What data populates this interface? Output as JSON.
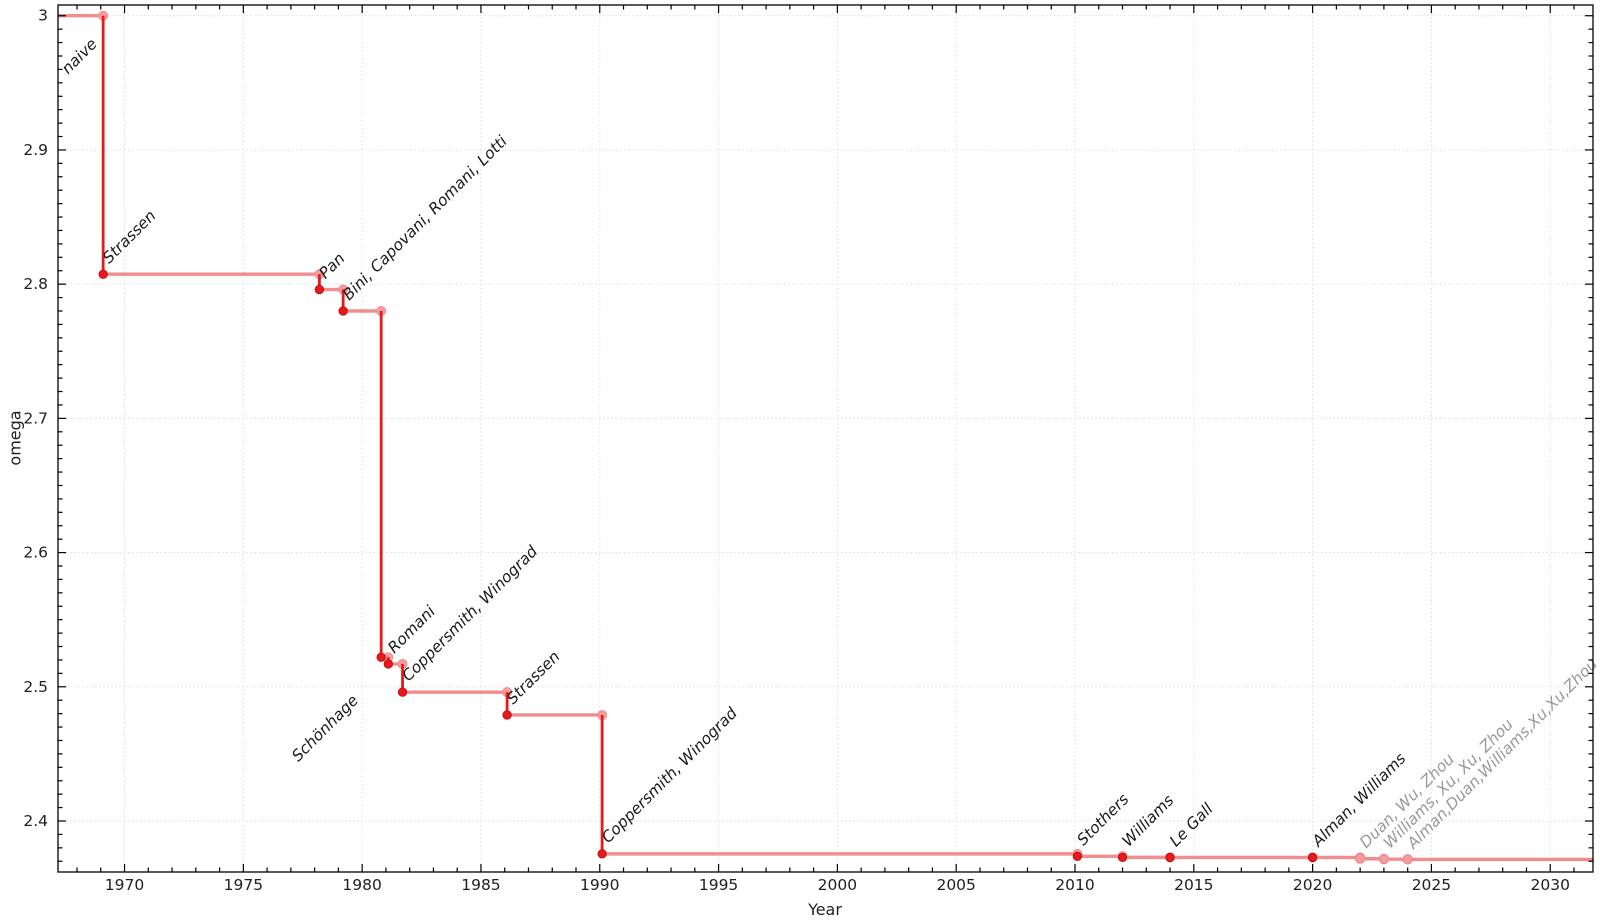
{
  "chart_data": {
    "type": "line",
    "subtype": "step-post",
    "title": "",
    "xlabel": "Year",
    "ylabel": "omega",
    "x_range": [
      1967.2,
      2031.8
    ],
    "y_range": [
      2.362,
      3.008
    ],
    "x_major_ticks": [
      1970,
      1975,
      1980,
      1985,
      1990,
      1995,
      2000,
      2005,
      2010,
      2015,
      2020,
      2025,
      2030
    ],
    "x_tick_labels": [
      "1970",
      "1975",
      "1980",
      "1985",
      "1990",
      "1995",
      "2000",
      "2005",
      "2010",
      "2015",
      "2020",
      "2025",
      "2030"
    ],
    "x_minor_step": 1,
    "y_major_ticks": [
      2.4,
      2.5,
      2.6,
      2.7,
      2.8,
      2.9,
      3.0
    ],
    "y_tick_labels": [
      "2.4",
      "2.5",
      "2.6",
      "2.7",
      "2.8",
      "2.9",
      "3"
    ],
    "y_minor_step": 0.01,
    "grid": "dotted-major-both-axes",
    "legend": "none",
    "series": [
      {
        "name": "best-known-omega-upper-bound",
        "initial": {
          "omega": 3,
          "label": "naive",
          "label_pos": {
            "year": 1967.62,
            "omega": 2.956
          }
        },
        "points": [
          {
            "year": 1969.1,
            "omega": 2.8074,
            "label": "Strassen",
            "style": "primary"
          },
          {
            "year": 1978.2,
            "omega": 2.796,
            "label": "Pan",
            "style": "primary"
          },
          {
            "year": 1979.2,
            "omega": 2.78,
            "label": "Bini, Capovani, Romani, Lotti",
            "style": "primary"
          },
          {
            "year": 1980.8,
            "omega": 2.522,
            "label": "Schönhage",
            "style": "primary",
            "label_anchor": "end",
            "label_dx": -22,
            "label_dy": 44
          },
          {
            "year": 1981.1,
            "omega": 2.517,
            "label": "Romani",
            "style": "primary"
          },
          {
            "year": 1981.7,
            "omega": 2.496,
            "label": "Coppersmith, Winograd",
            "style": "primary"
          },
          {
            "year": 1986.1,
            "omega": 2.479,
            "label": "Strassen",
            "style": "primary"
          },
          {
            "year": 1990.1,
            "omega": 2.3755,
            "label": "Coppersmith, Winograd",
            "style": "primary"
          },
          {
            "year": 2010.1,
            "omega": 2.3737,
            "label": "Stothers",
            "style": "primary"
          },
          {
            "year": 2012.0,
            "omega": 2.3729,
            "label": "Williams",
            "style": "primary"
          },
          {
            "year": 2014.0,
            "omega": 2.3728639,
            "label": "Le Gall",
            "style": "primary"
          },
          {
            "year": 2020.0,
            "omega": 2.3728596,
            "label": "Alman, Williams",
            "style": "primary"
          },
          {
            "year": 2022.0,
            "omega": 2.371866,
            "label": "Duan, Wu, Zhou",
            "style": "secondary"
          },
          {
            "year": 2023.0,
            "omega": 2.371552,
            "label": "Williams, Xu, Xu, Zhou",
            "style": "secondary"
          },
          {
            "year": 2024.0,
            "omega": 2.371339,
            "label": "Alman,Duan,Williams,Xu,Xu,Zhou",
            "style": "secondary"
          }
        ]
      }
    ],
    "colors": {
      "step_horizontal": "#F28D8E",
      "step_vertical": "#E41A1C",
      "marker_primary": "#E41A1C",
      "marker_primary_stroke": "#C4090C",
      "marker_secondary": "#F49C9E",
      "marker_secondary_stroke": "#EF8185",
      "corner_marker": "#F49C9E",
      "corner_marker_stroke": "#F08A8C",
      "label_primary": "#1A1A1A",
      "label_secondary": "#999999",
      "grid": "#DBDBDB",
      "axis": "#000000",
      "tick_label": "#1F1F1F"
    }
  }
}
